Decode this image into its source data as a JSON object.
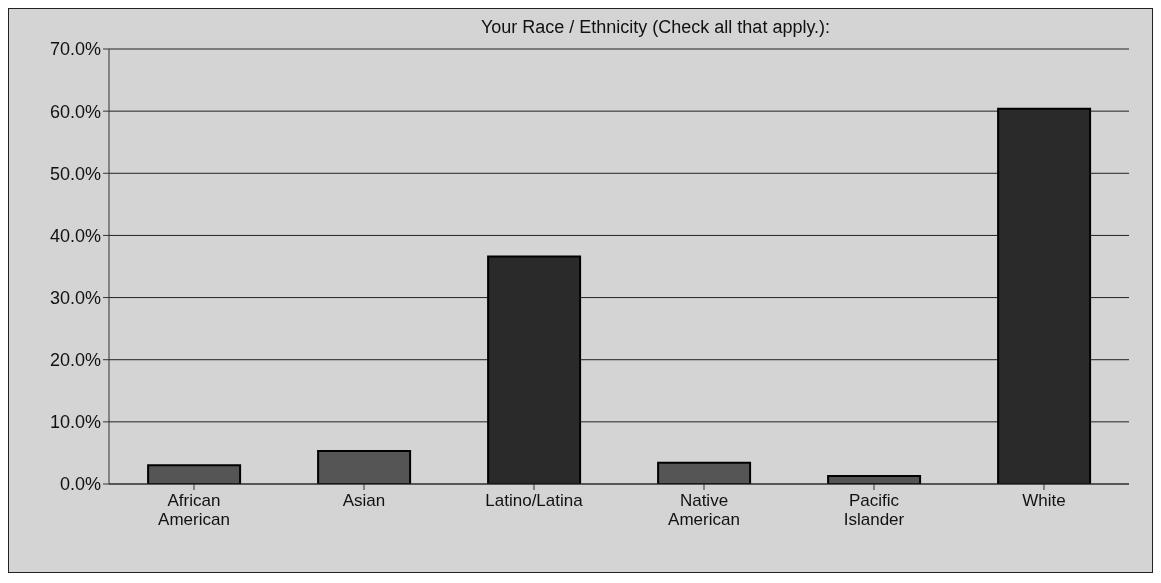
{
  "chart_data": {
    "type": "bar",
    "title": "Your Race / Ethnicity (Check all that apply.):",
    "categories": [
      "African American",
      "Asian",
      "Latino/Latina",
      "Native American",
      "Pacific Islander",
      "White"
    ],
    "values": [
      3.0,
      5.3,
      36.6,
      3.4,
      1.3,
      60.4
    ],
    "colors": [
      "#555555",
      "#555555",
      "#2a2a2a",
      "#555555",
      "#555555",
      "#2a2a2a"
    ],
    "ylim": [
      0,
      70
    ],
    "yticks": [
      {
        "value": 0,
        "label": "0.0%"
      },
      {
        "value": 10,
        "label": "10.0%"
      },
      {
        "value": 20,
        "label": "20.0%"
      },
      {
        "value": 30,
        "label": "30.0%"
      },
      {
        "value": 40,
        "label": "40.0%"
      },
      {
        "value": 50,
        "label": "50.0%"
      },
      {
        "value": 60,
        "label": "60.0%"
      },
      {
        "value": 70,
        "label": "70.0%"
      }
    ],
    "grid": "y"
  }
}
